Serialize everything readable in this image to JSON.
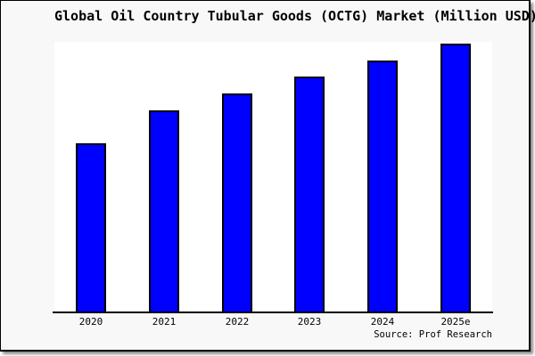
{
  "chart_data": {
    "type": "bar",
    "title": "Global Oil Country Tubular Goods (OCTG) Market (Million USD)",
    "categories": [
      "2020",
      "2021",
      "2022",
      "2023",
      "2024",
      "2025e"
    ],
    "values_relative": [
      62.7,
      75.0,
      81.3,
      87.7,
      93.7,
      100
    ],
    "value_note": "No y-axis ticks, gridlines or data labels are shown; values are relative bar heights with 2025e = 100.",
    "xlabel": "",
    "ylabel": "",
    "grid": false,
    "legend": "none",
    "series_name": "OCTG Market (Million USD)"
  },
  "source": {
    "label": "Source: Prof Research"
  },
  "colors": {
    "bar_fill": "#0000ff",
    "bar_border": "#000000",
    "figure_bg": "#f8f8f8",
    "plot_bg": "#ffffff",
    "axis": "#000000",
    "text": "#000000",
    "figure_border": "#000000"
  }
}
